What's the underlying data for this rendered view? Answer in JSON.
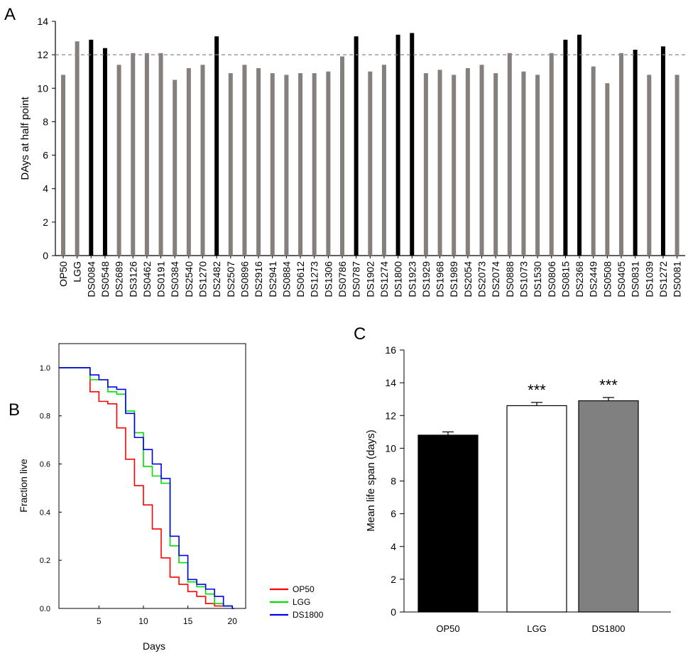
{
  "colors": {
    "gray_bar": "#857f7d",
    "black_bar": "#000000",
    "ref_line": "#888888",
    "op50": "#ff0000",
    "lgg": "#00dd00",
    "ds1800": "#0000ee",
    "ds1800_bar": "#808080",
    "lgg_bar": "#ffffff"
  },
  "chart_data": [
    {
      "panel": "A",
      "type": "bar",
      "ylabel": "DAys at half point",
      "ylim": [
        0,
        14
      ],
      "yticks": [
        0,
        2,
        4,
        6,
        8,
        10,
        12,
        14
      ],
      "reference_line": 12,
      "categories": [
        "OP50",
        "LGG",
        "DS0084",
        "DS0548",
        "DS2689",
        "DS3126",
        "DS0462",
        "DS0191",
        "DS0384",
        "DS2540",
        "DS1270",
        "DS2482",
        "DS2507",
        "DS0896",
        "DS2916",
        "DS2941",
        "DS0884",
        "DS0612",
        "DS1273",
        "DS1306",
        "DS0786",
        "DS0787",
        "DS1902",
        "DS1274",
        "DS1800",
        "DS1923",
        "DS1929",
        "DS1968",
        "DS1989",
        "DS2054",
        "DS2073",
        "DS2074",
        "DS0888",
        "DS1073",
        "DS1530",
        "DS0806",
        "DS0815",
        "DS2368",
        "DS2449",
        "DS0508",
        "DS0405",
        "DS0831",
        "DS1039",
        "DS1272",
        "DS0081"
      ],
      "values": [
        10.8,
        12.8,
        12.9,
        12.4,
        11.4,
        12.1,
        12.1,
        12.1,
        10.5,
        11.2,
        11.4,
        13.1,
        10.9,
        11.4,
        11.2,
        10.9,
        10.8,
        10.9,
        10.9,
        11.0,
        11.9,
        13.1,
        11.0,
        11.4,
        13.2,
        13.3,
        10.9,
        11.1,
        10.8,
        11.2,
        11.4,
        10.9,
        12.1,
        11.0,
        10.8,
        12.1,
        12.9,
        13.2,
        11.3,
        10.3,
        12.1,
        12.3,
        10.8,
        12.5,
        10.8
      ],
      "highlight": [
        false,
        false,
        true,
        true,
        false,
        false,
        false,
        false,
        false,
        false,
        false,
        true,
        false,
        false,
        false,
        false,
        false,
        false,
        false,
        false,
        false,
        true,
        false,
        false,
        true,
        true,
        false,
        false,
        false,
        false,
        false,
        false,
        false,
        false,
        false,
        false,
        true,
        true,
        false,
        false,
        false,
        true,
        false,
        true,
        false
      ]
    },
    {
      "panel": "B",
      "type": "line",
      "xlabel": "Days",
      "ylabel": "Fraction live",
      "xlim": [
        0.5,
        21.5
      ],
      "ylim": [
        0,
        1.1
      ],
      "xticks": [
        5,
        10,
        15,
        20
      ],
      "yticks": [
        "0.0",
        "0.2",
        "0.4",
        "0.6",
        "0.8",
        "1.0"
      ],
      "series": [
        {
          "name": "OP50",
          "color_key": "op50",
          "steps": [
            [
              0.5,
              1.0
            ],
            [
              4,
              0.9
            ],
            [
              5,
              0.86
            ],
            [
              6,
              0.85
            ],
            [
              7,
              0.75
            ],
            [
              8,
              0.62
            ],
            [
              9,
              0.51
            ],
            [
              10,
              0.43
            ],
            [
              11,
              0.33
            ],
            [
              12,
              0.21
            ],
            [
              13,
              0.13
            ],
            [
              14,
              0.1
            ],
            [
              15,
              0.07
            ],
            [
              16,
              0.05
            ],
            [
              17,
              0.02
            ],
            [
              18,
              0.01
            ],
            [
              19,
              0.01
            ],
            [
              20,
              0.0
            ]
          ]
        },
        {
          "name": "LGG",
          "color_key": "lgg",
          "steps": [
            [
              0.5,
              1.0
            ],
            [
              4,
              0.95
            ],
            [
              6,
              0.9
            ],
            [
              7,
              0.89
            ],
            [
              8,
              0.82
            ],
            [
              9,
              0.73
            ],
            [
              10,
              0.59
            ],
            [
              11,
              0.55
            ],
            [
              12,
              0.52
            ],
            [
              13,
              0.26
            ],
            [
              14,
              0.19
            ],
            [
              15,
              0.11
            ],
            [
              16,
              0.09
            ],
            [
              17,
              0.06
            ],
            [
              18,
              0.02
            ],
            [
              19,
              0.01
            ],
            [
              20,
              0.0
            ]
          ]
        },
        {
          "name": "DS1800",
          "color_key": "ds1800",
          "steps": [
            [
              0.5,
              1.0
            ],
            [
              4,
              0.97
            ],
            [
              5,
              0.95
            ],
            [
              6,
              0.92
            ],
            [
              7,
              0.91
            ],
            [
              8,
              0.81
            ],
            [
              9,
              0.71
            ],
            [
              10,
              0.66
            ],
            [
              11,
              0.6
            ],
            [
              12,
              0.54
            ],
            [
              13,
              0.3
            ],
            [
              14,
              0.22
            ],
            [
              15,
              0.12
            ],
            [
              16,
              0.1
            ],
            [
              17,
              0.08
            ],
            [
              18,
              0.05
            ],
            [
              19,
              0.01
            ],
            [
              20,
              0.0
            ]
          ]
        }
      ],
      "legend": [
        "OP50",
        "LGG",
        "DS1800"
      ],
      "legend_position": "bottom-right outside"
    },
    {
      "panel": "C",
      "type": "bar",
      "ylabel": "Mean life span (days)",
      "ylim": [
        0,
        16
      ],
      "yticks": [
        0,
        2,
        4,
        6,
        8,
        10,
        12,
        14,
        16
      ],
      "categories": [
        "OP50",
        "LGG",
        "DS1800"
      ],
      "values": [
        10.8,
        12.6,
        12.9
      ],
      "errors": [
        0.2,
        0.2,
        0.2
      ],
      "significance": [
        "",
        "***",
        "***"
      ],
      "fill_keys": [
        "black_bar",
        "lgg_bar",
        "ds1800_bar"
      ]
    }
  ]
}
